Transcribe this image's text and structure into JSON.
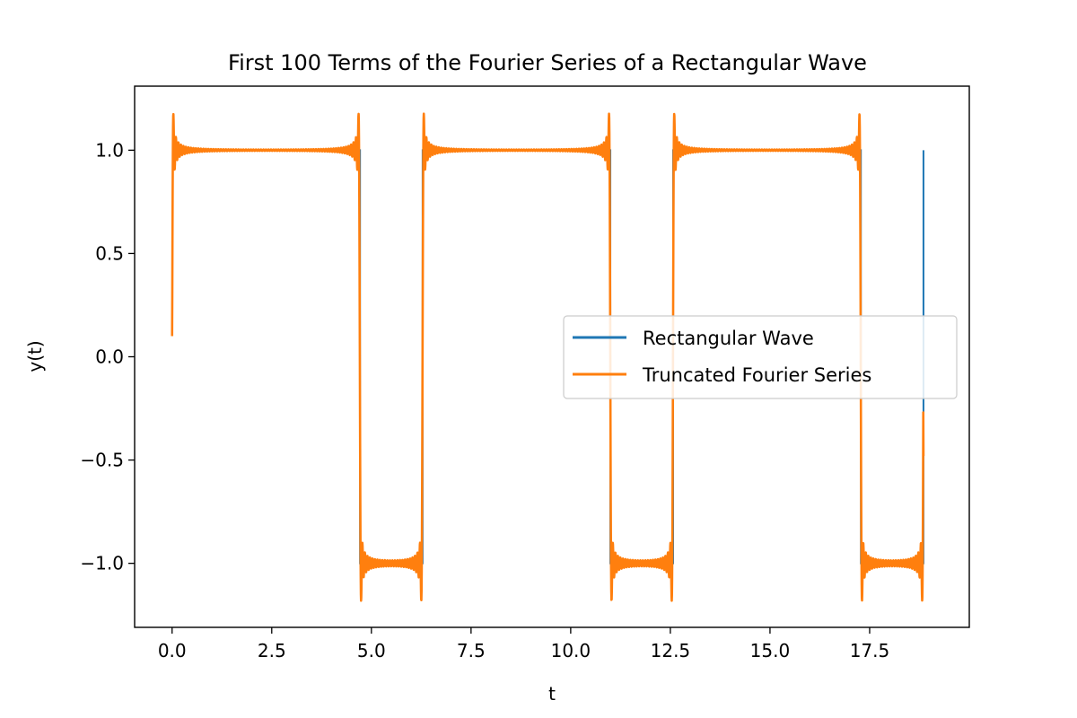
{
  "chart_data": {
    "type": "line",
    "title": "First 100 Terms of the Fourier Series of a Rectangular Wave",
    "xlabel": "t",
    "ylabel": "y(t)",
    "xlim": [
      -0.94,
      20.0
    ],
    "ylim": [
      -1.31,
      1.31
    ],
    "grid": false,
    "legend_placement": "center-right",
    "x_ticks": [
      0.0,
      2.5,
      5.0,
      7.5,
      10.0,
      12.5,
      15.0,
      17.5
    ],
    "x_tick_labels": [
      "0.0",
      "2.5",
      "5.0",
      "7.5",
      "10.0",
      "12.5",
      "15.0",
      "17.5"
    ],
    "y_ticks": [
      -1.0,
      -0.5,
      0.0,
      0.5,
      1.0
    ],
    "y_tick_labels": [
      "−1.0",
      "−0.5",
      "0.0",
      "0.5",
      "1.0"
    ],
    "series": [
      {
        "name": "Rectangular Wave",
        "color": "#1f77b4",
        "x_range": [
          0.0,
          18.85
        ],
        "period": 6.2832,
        "high": 1.0,
        "low": -1.0,
        "high_until": 4.71
      },
      {
        "name": "Truncated Fourier Series",
        "color": "#ff7f0e",
        "terms": 100,
        "x_range": [
          0.0,
          18.85
        ],
        "start_value": 0.1,
        "end_value": -0.48,
        "overshoot_max": 1.19,
        "undershoot_min": -1.19
      }
    ]
  }
}
